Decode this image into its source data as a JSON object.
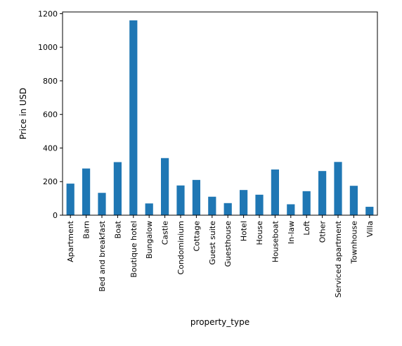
{
  "chart_data": {
    "type": "bar",
    "xlabel": "property_type",
    "ylabel": "Price in USD",
    "ylim": [
      0,
      1210
    ],
    "yticks": [
      0,
      200,
      400,
      600,
      800,
      1000,
      1200
    ],
    "grid": false,
    "bar_color": "#1f77b4",
    "categories": [
      "Apartment",
      "Barn",
      "Bed and breakfast",
      "Boat",
      "Boutique hotel",
      "Bungalow",
      "Castle",
      "Condominium",
      "Cottage",
      "Guest suite",
      "Guesthouse",
      "Hotel",
      "House",
      "Houseboat",
      "In-law",
      "Loft",
      "Other",
      "Serviced apartment",
      "Townhouse",
      "Villa"
    ],
    "values": [
      188,
      278,
      133,
      316,
      1160,
      70,
      340,
      177,
      210,
      110,
      72,
      150,
      122,
      272,
      65,
      143,
      263,
      317,
      175,
      50
    ]
  }
}
